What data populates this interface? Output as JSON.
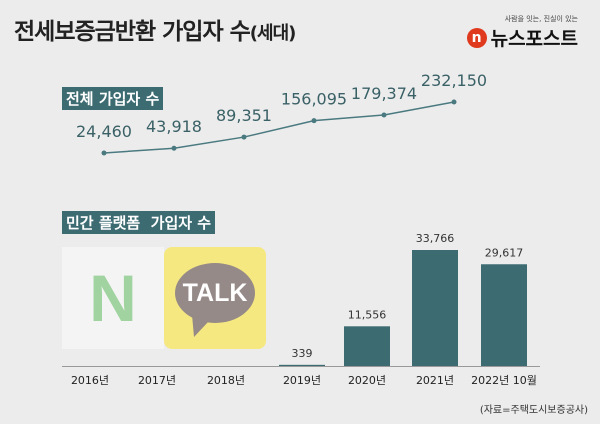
{
  "title": "전세보증금반환 가입자 수",
  "title_suffix": "(세대)",
  "brand": {
    "tagline": "사람을 잇는, 진실이 있는",
    "name": "뉴스포스트",
    "logo_letter": "n"
  },
  "source": "(자료=주택도시보증공사)",
  "logos": {
    "naver": "N",
    "kakao": "TALK"
  },
  "colors": {
    "teal": "#3d6b72",
    "line": "#4a7a80"
  },
  "chart_data": [
    {
      "type": "line",
      "title": "전체 가입자 수",
      "categories": [
        "2016년",
        "2017년",
        "2018년",
        "2019년",
        "2020년",
        "2021년"
      ],
      "values": [
        24460,
        43918,
        89351,
        156095,
        179374,
        232150
      ],
      "labels": [
        "24,460",
        "43,918",
        "89,351",
        "156,095",
        "179,374",
        "232,150"
      ]
    },
    {
      "type": "bar",
      "title": "민간 플랫폼  가입자 수",
      "categories": [
        "2016년",
        "2017년",
        "2018년",
        "2019년",
        "2020년",
        "2021년",
        "2022년 10월"
      ],
      "values": [
        null,
        null,
        null,
        339,
        11556,
        33766,
        29617
      ],
      "labels": [
        "",
        "",
        "",
        "339",
        "11,556",
        "33,766",
        "29,617"
      ]
    }
  ]
}
